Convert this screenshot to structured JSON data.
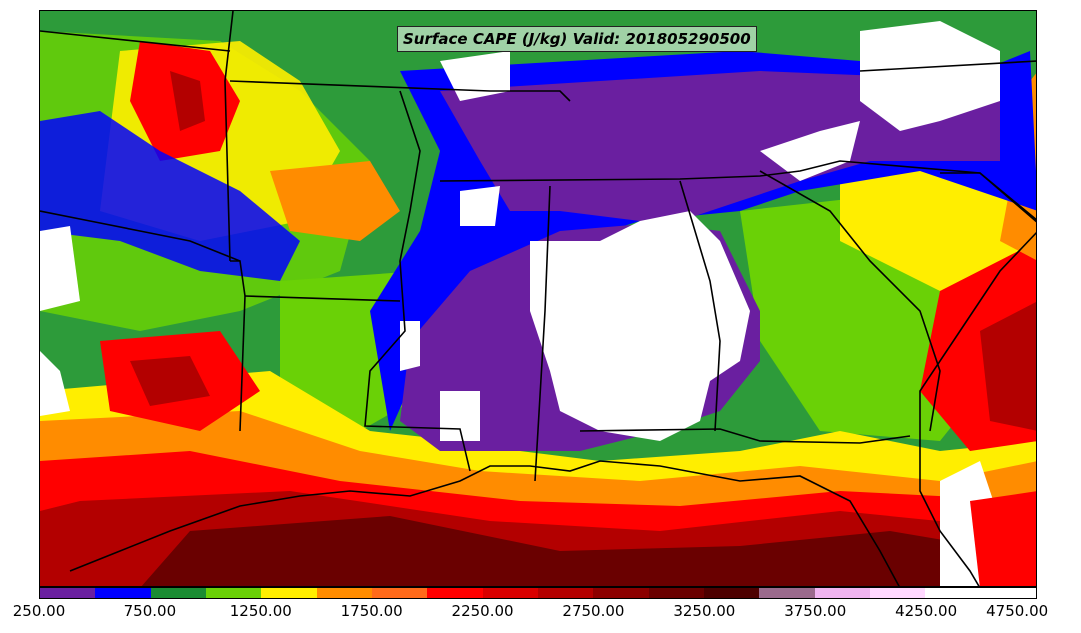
{
  "map": {
    "title": "Surface CAPE (J/kg) Valid: 201805290500"
  },
  "colorbar": {
    "colors": [
      "#6a1fa0",
      "#0000ff",
      "#1a8c32",
      "#6ad106",
      "#ffee00",
      "#ff8c00",
      "#ff6a1a",
      "#ff0000",
      "#d90000",
      "#b30000",
      "#8c0000",
      "#6a0000",
      "#4d0000",
      "#9b6a8c",
      "#f0b4f0",
      "#ffd8ff",
      "#ffffff",
      "#ffffff"
    ],
    "tick_labels": [
      "250.00",
      "750.00",
      "1250.00",
      "1750.00",
      "2250.00",
      "2750.00",
      "3250.00",
      "3750.00",
      "4250.00",
      "4750.00"
    ]
  }
}
